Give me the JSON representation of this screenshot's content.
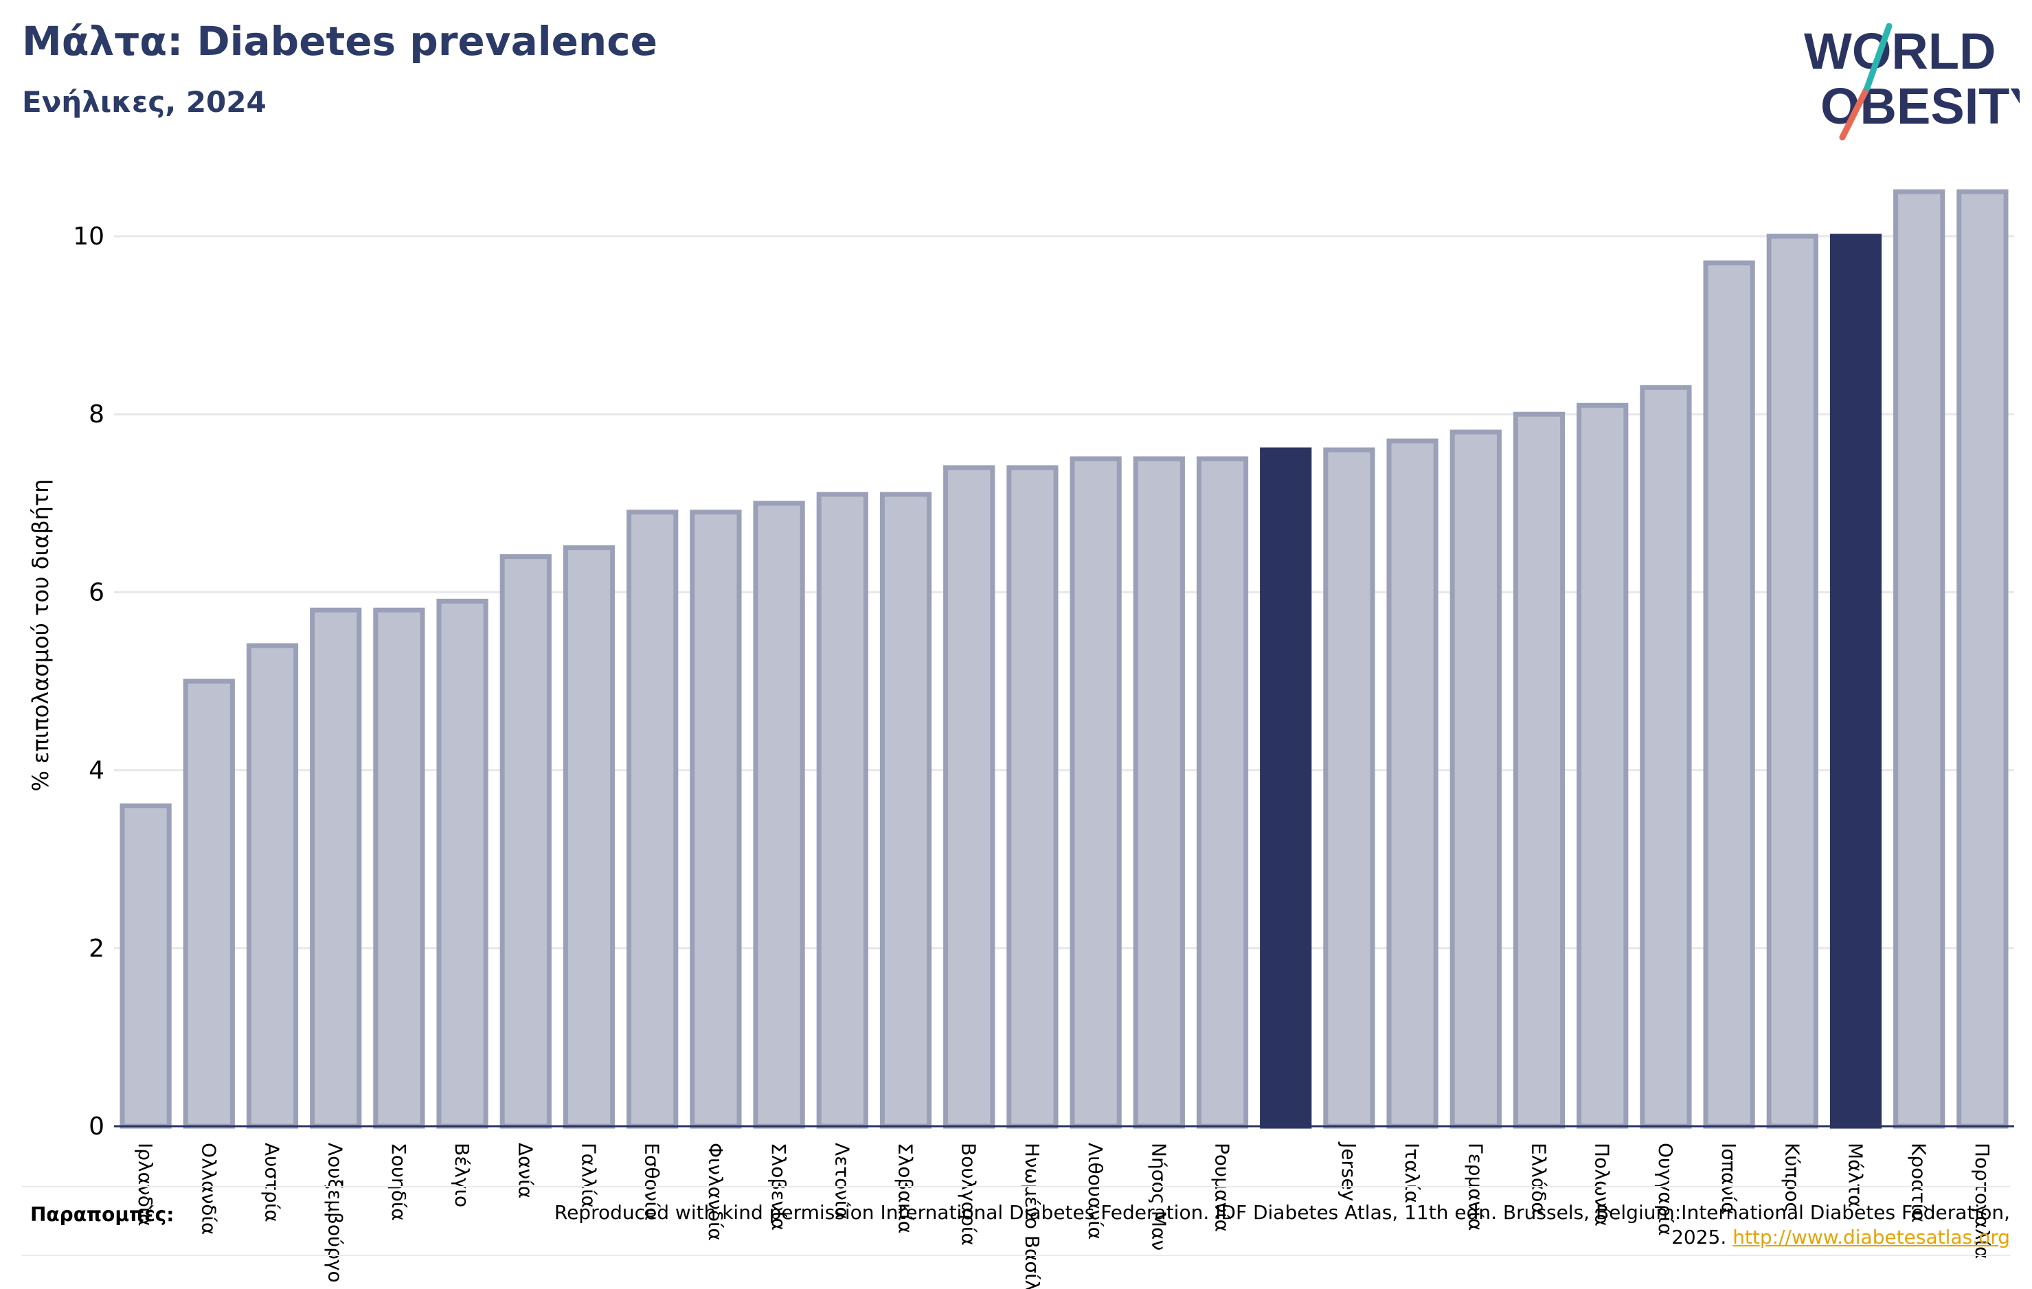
{
  "header": {
    "title": "Μάλτα: Diabetes prevalence",
    "subtitle": "Ενήλικες, 2024"
  },
  "logo": {
    "line1": "WORLD",
    "line2": "OBESITY"
  },
  "chart_data": {
    "type": "bar",
    "ylabel": "% επιπολασμού του διαβήτη",
    "ylim": [
      0,
      10.6
    ],
    "yticks": [
      0,
      2,
      4,
      6,
      8,
      10
    ],
    "grid": true,
    "categories": [
      "Ιρλανδία",
      "Ολλανδία",
      "Αυστρία",
      "Λουξεμβούργο",
      "Σουηδία",
      "Βέλγιο",
      "Δανία",
      "Γαλλία",
      "Εσθονία",
      "Φινλανδία",
      "Σλοβενία",
      "Λετονία",
      "Σλοβακία",
      "Βουλγαρία",
      "Ηνωμένο Βασίλειο",
      "Λιθουανία",
      "Νήσος Μαν",
      "Ρουμανία",
      "",
      "Jersey",
      "Ιταλία",
      "Γερμανία",
      "Ελλάδα",
      "Πολωνία",
      "Ουγγαρία",
      "Ισπανία",
      "Κύπρος",
      "Μάλτα",
      "Κροατία",
      "Πορτογαλία"
    ],
    "values": [
      3.6,
      5.0,
      5.4,
      5.8,
      5.8,
      5.9,
      6.4,
      6.5,
      6.9,
      6.9,
      7.0,
      7.1,
      7.1,
      7.4,
      7.4,
      7.5,
      7.5,
      7.5,
      7.6,
      7.6,
      7.7,
      7.8,
      8.0,
      8.1,
      8.3,
      9.7,
      10.0,
      10.0,
      10.5,
      10.5
    ],
    "highlight_indices": [
      18,
      27
    ],
    "colors": {
      "bar": "#bec1cf",
      "bar_border": "#9aa0b7",
      "highlight": "#2b3461",
      "axis": "#2b3461",
      "grid": "#e7e7ec",
      "text": "#000000"
    }
  },
  "footer": {
    "references_label": "Παραπομπές:",
    "references_text": "Reproduced with kind permission International Diabetes Federation. IDF Diabetes Atlas, 11th edn. Brussels, Belgium:International Diabetes Federation, 2025.",
    "references_link": "http://www.diabetesatlas.org"
  }
}
